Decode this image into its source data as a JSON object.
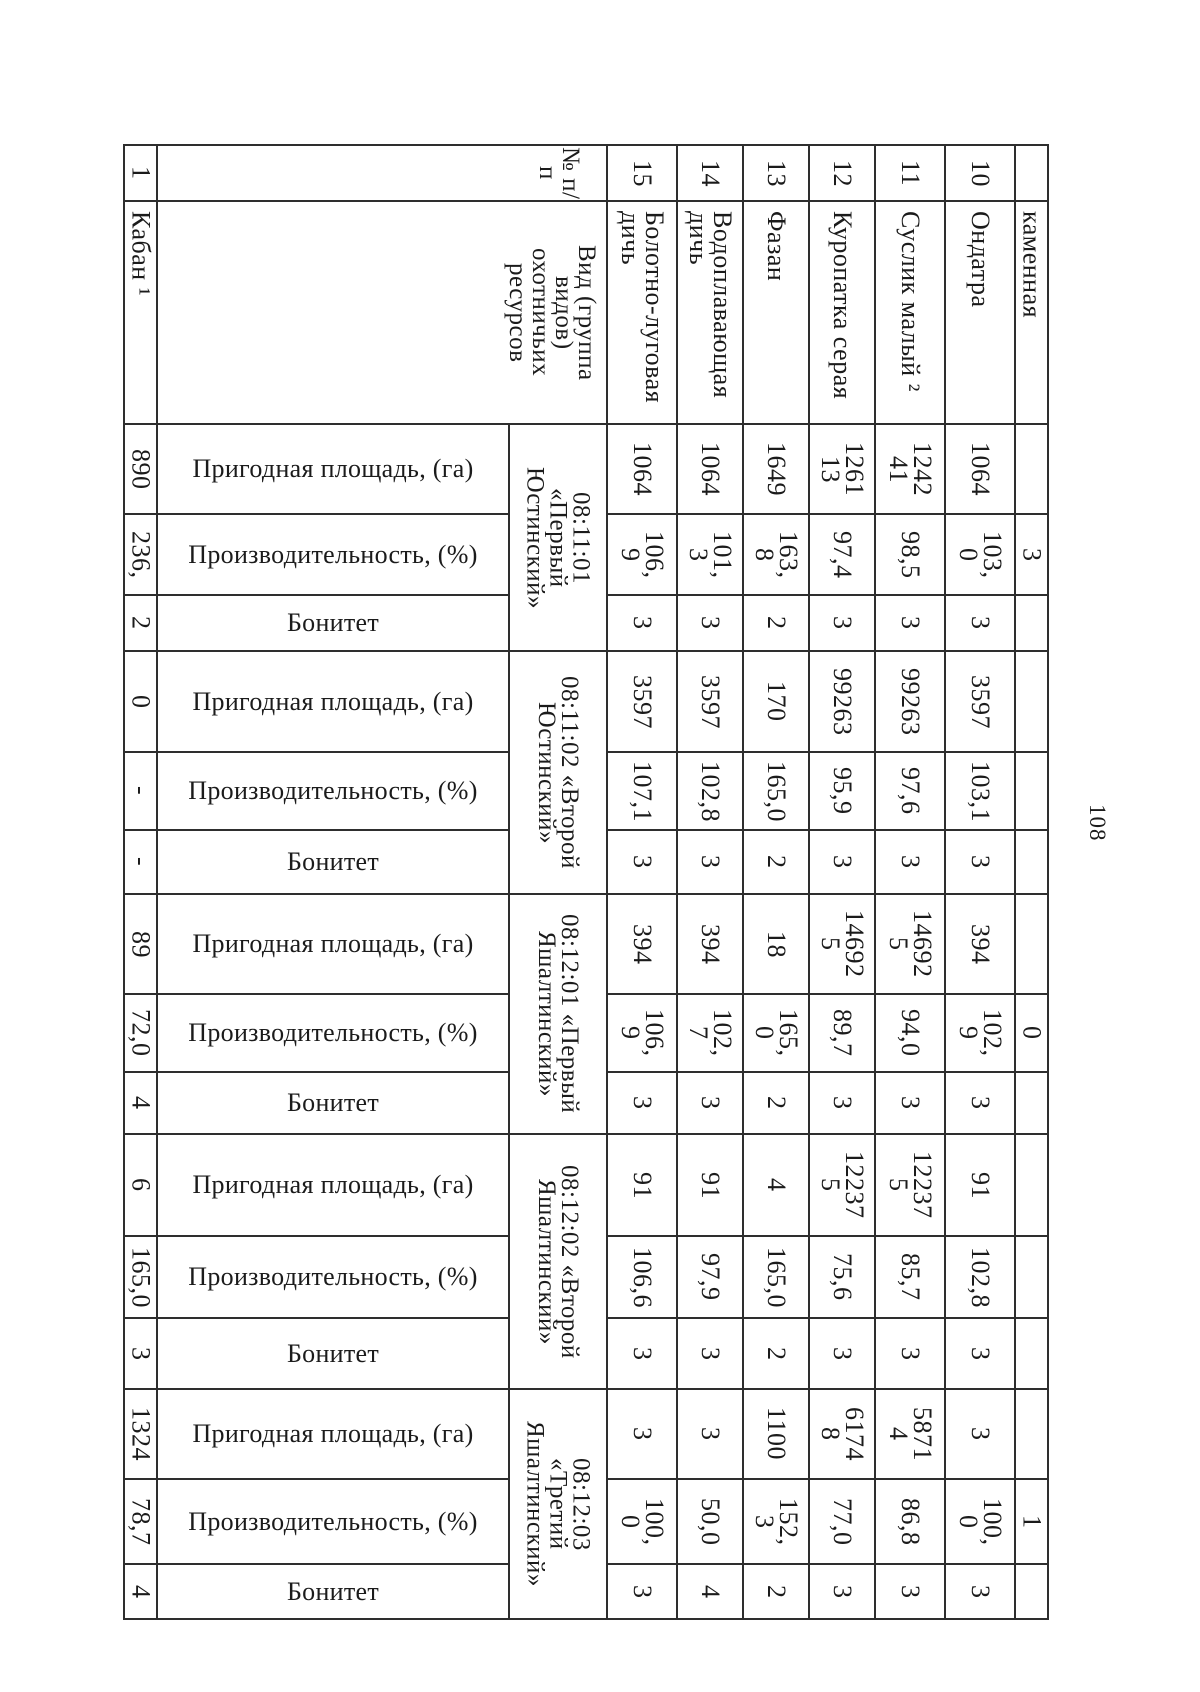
{
  "page_number": "108",
  "table": {
    "row_number_kaban": "1",
    "kaban": {
      "name": "Кабан ¹",
      "values": [
        "890",
        "236,",
        "2",
        "0",
        "-",
        "-",
        "89",
        "72,0",
        "4",
        "6",
        "165,0",
        "3",
        "1324",
        "78,7",
        "4"
      ]
    },
    "header": {
      "num": "№ п/\nп",
      "species": "Вид (группа\nвидов)\nохотничьих\nресурсов"
    },
    "sub_labels": [
      "Пригодная площадь, (га)",
      "Производительность, (%)",
      "Бонитет"
    ],
    "grounds": [
      "08:11:01\n«Первый\nЮстинский»",
      "08:11:02 «Второй\nЮстинский»",
      "08:12:01 «Первый\nЯшалтинский»",
      "08:12:02 «Второй\nЯшалтинский»",
      "08:12:03\n«Третий\nЯшалтинский»"
    ],
    "species": [
      {
        "num": "15",
        "name": "Болотно-луговая\nдичь",
        "values": [
          "1064",
          "106,\n9",
          "3",
          "3597",
          "107,1",
          "3",
          "394",
          "106,\n9",
          "3",
          "91",
          "106,6",
          "3",
          "3",
          "100,\n0",
          "3"
        ]
      },
      {
        "num": "14",
        "name": "Водоплавающая\nдичь",
        "values": [
          "1064",
          "101,\n3",
          "3",
          "3597",
          "102,8",
          "3",
          "394",
          "102,\n7",
          "3",
          "91",
          "97,9",
          "3",
          "3",
          "50,0",
          "4"
        ]
      },
      {
        "num": "13",
        "name": "Фазан",
        "values": [
          "1649",
          "163,\n8",
          "2",
          "170",
          "165,0",
          "2",
          "18",
          "165,\n0",
          "2",
          "4",
          "165,0",
          "2",
          "1100",
          "152,\n3",
          "2"
        ]
      },
      {
        "num": "12",
        "name": "Куропатка серая",
        "values": [
          "1261\n13",
          "97,4",
          "3",
          "99263",
          "95,9",
          "3",
          "14692\n5",
          "89,7",
          "3",
          "12237\n5",
          "75,6",
          "3",
          "6174\n8",
          "77,0",
          "3"
        ]
      },
      {
        "num": "11",
        "name": "Суслик малый ²",
        "values": [
          "1242\n41",
          "98,5",
          "3",
          "99263",
          "97,6",
          "3",
          "14692\n5",
          "94,0",
          "3",
          "12237\n5",
          "85,7",
          "3",
          "5871\n4",
          "86,8",
          "3"
        ]
      },
      {
        "num": "10",
        "name": "Ондатра",
        "values": [
          "1064",
          "103,\n0",
          "3",
          "3597",
          "103,1",
          "3",
          "394",
          "102,\n9",
          "3",
          "91",
          "102,8",
          "3",
          "3",
          "100,\n0",
          "3"
        ]
      },
      {
        "num": "",
        "name": "каменная",
        "values": [
          "",
          "3",
          "",
          "",
          "",
          "",
          "",
          "0",
          "",
          "",
          "",
          "",
          "",
          "1",
          ""
        ]
      }
    ]
  }
}
